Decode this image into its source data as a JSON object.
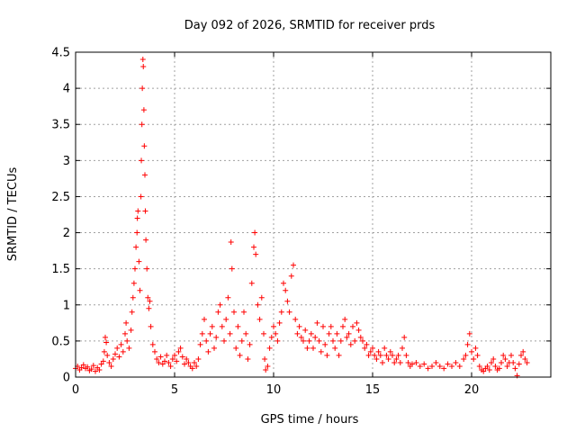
{
  "chart_data": {
    "type": "scatter",
    "title": "Day 092 of 2026, SRMTID for receiver prds",
    "xlabel": "GPS time / hours",
    "ylabel": "SRMTID / TECUs",
    "xlim": [
      0,
      24
    ],
    "ylim": [
      0,
      4.5
    ],
    "xticks": [
      "0",
      "5",
      "10",
      "15",
      "20"
    ],
    "yticks": [
      "0",
      "0.5",
      "1",
      "1.5",
      "2",
      "2.5",
      "3",
      "3.5",
      "4",
      "4.5"
    ],
    "grid": true,
    "marker": "plus",
    "series": [
      {
        "name": "SRMTID",
        "color": "#ff0000",
        "points": [
          [
            0.0,
            0.12
          ],
          [
            0.1,
            0.15
          ],
          [
            0.2,
            0.1
          ],
          [
            0.3,
            0.13
          ],
          [
            0.4,
            0.17
          ],
          [
            0.5,
            0.12
          ],
          [
            0.6,
            0.14
          ],
          [
            0.7,
            0.09
          ],
          [
            0.8,
            0.11
          ],
          [
            0.9,
            0.16
          ],
          [
            1.0,
            0.08
          ],
          [
            1.1,
            0.13
          ],
          [
            1.2,
            0.1
          ],
          [
            1.3,
            0.18
          ],
          [
            1.4,
            0.22
          ],
          [
            1.45,
            0.35
          ],
          [
            1.5,
            0.55
          ],
          [
            1.55,
            0.48
          ],
          [
            1.6,
            0.3
          ],
          [
            1.7,
            0.2
          ],
          [
            1.8,
            0.15
          ],
          [
            1.9,
            0.25
          ],
          [
            2.0,
            0.32
          ],
          [
            2.1,
            0.4
          ],
          [
            2.2,
            0.28
          ],
          [
            2.3,
            0.45
          ],
          [
            2.4,
            0.35
          ],
          [
            2.5,
            0.6
          ],
          [
            2.55,
            0.75
          ],
          [
            2.6,
            0.5
          ],
          [
            2.7,
            0.4
          ],
          [
            2.8,
            0.65
          ],
          [
            2.85,
            0.9
          ],
          [
            2.9,
            1.1
          ],
          [
            2.95,
            1.3
          ],
          [
            3.0,
            1.5
          ],
          [
            3.05,
            1.8
          ],
          [
            3.1,
            2.0
          ],
          [
            3.12,
            2.2
          ],
          [
            3.15,
            2.3
          ],
          [
            3.2,
            1.6
          ],
          [
            3.25,
            1.2
          ],
          [
            3.3,
            2.5
          ],
          [
            3.32,
            3.0
          ],
          [
            3.35,
            3.5
          ],
          [
            3.37,
            4.0
          ],
          [
            3.4,
            4.4
          ],
          [
            3.42,
            4.3
          ],
          [
            3.45,
            3.7
          ],
          [
            3.47,
            3.2
          ],
          [
            3.5,
            2.8
          ],
          [
            3.52,
            2.3
          ],
          [
            3.55,
            1.9
          ],
          [
            3.6,
            1.5
          ],
          [
            3.65,
            1.1
          ],
          [
            3.7,
            0.95
          ],
          [
            3.75,
            1.05
          ],
          [
            3.8,
            0.7
          ],
          [
            3.9,
            0.45
          ],
          [
            4.0,
            0.35
          ],
          [
            4.1,
            0.25
          ],
          [
            4.2,
            0.2
          ],
          [
            4.3,
            0.28
          ],
          [
            4.4,
            0.18
          ],
          [
            4.5,
            0.22
          ],
          [
            4.6,
            0.3
          ],
          [
            4.7,
            0.2
          ],
          [
            4.8,
            0.15
          ],
          [
            4.9,
            0.25
          ],
          [
            5.0,
            0.3
          ],
          [
            5.1,
            0.22
          ],
          [
            5.2,
            0.35
          ],
          [
            5.3,
            0.4
          ],
          [
            5.4,
            0.28
          ],
          [
            5.5,
            0.18
          ],
          [
            5.6,
            0.25
          ],
          [
            5.7,
            0.2
          ],
          [
            5.8,
            0.15
          ],
          [
            5.9,
            0.12
          ],
          [
            6.0,
            0.2
          ],
          [
            6.1,
            0.15
          ],
          [
            6.2,
            0.25
          ],
          [
            6.3,
            0.45
          ],
          [
            6.4,
            0.6
          ],
          [
            6.5,
            0.8
          ],
          [
            6.6,
            0.5
          ],
          [
            6.7,
            0.35
          ],
          [
            6.8,
            0.6
          ],
          [
            6.9,
            0.7
          ],
          [
            7.0,
            0.4
          ],
          [
            7.1,
            0.55
          ],
          [
            7.2,
            0.9
          ],
          [
            7.3,
            1.0
          ],
          [
            7.4,
            0.7
          ],
          [
            7.5,
            0.5
          ],
          [
            7.6,
            0.8
          ],
          [
            7.7,
            1.1
          ],
          [
            7.8,
            0.6
          ],
          [
            7.85,
            1.87
          ],
          [
            7.9,
            1.5
          ],
          [
            8.0,
            0.9
          ],
          [
            8.1,
            0.4
          ],
          [
            8.2,
            0.7
          ],
          [
            8.3,
            0.3
          ],
          [
            8.4,
            0.5
          ],
          [
            8.5,
            0.9
          ],
          [
            8.6,
            0.6
          ],
          [
            8.7,
            0.25
          ],
          [
            8.8,
            0.45
          ],
          [
            8.9,
            1.3
          ],
          [
            9.0,
            1.8
          ],
          [
            9.05,
            2.0
          ],
          [
            9.1,
            1.7
          ],
          [
            9.2,
            1.0
          ],
          [
            9.3,
            0.8
          ],
          [
            9.4,
            1.1
          ],
          [
            9.5,
            0.6
          ],
          [
            9.55,
            0.25
          ],
          [
            9.6,
            0.1
          ],
          [
            9.7,
            0.15
          ],
          [
            9.8,
            0.4
          ],
          [
            9.9,
            0.55
          ],
          [
            10.0,
            0.7
          ],
          [
            10.1,
            0.6
          ],
          [
            10.2,
            0.5
          ],
          [
            10.3,
            0.75
          ],
          [
            10.4,
            0.9
          ],
          [
            10.5,
            1.3
          ],
          [
            10.6,
            1.2
          ],
          [
            10.7,
            1.05
          ],
          [
            10.8,
            0.9
          ],
          [
            10.9,
            1.4
          ],
          [
            11.0,
            1.55
          ],
          [
            11.1,
            0.8
          ],
          [
            11.2,
            0.6
          ],
          [
            11.3,
            0.7
          ],
          [
            11.4,
            0.55
          ],
          [
            11.5,
            0.5
          ],
          [
            11.6,
            0.65
          ],
          [
            11.7,
            0.4
          ],
          [
            11.8,
            0.5
          ],
          [
            11.9,
            0.6
          ],
          [
            12.0,
            0.4
          ],
          [
            12.1,
            0.55
          ],
          [
            12.2,
            0.75
          ],
          [
            12.3,
            0.5
          ],
          [
            12.4,
            0.35
          ],
          [
            12.5,
            0.7
          ],
          [
            12.6,
            0.45
          ],
          [
            12.7,
            0.3
          ],
          [
            12.8,
            0.6
          ],
          [
            12.9,
            0.7
          ],
          [
            13.0,
            0.5
          ],
          [
            13.1,
            0.4
          ],
          [
            13.2,
            0.6
          ],
          [
            13.3,
            0.3
          ],
          [
            13.4,
            0.5
          ],
          [
            13.5,
            0.7
          ],
          [
            13.6,
            0.8
          ],
          [
            13.7,
            0.55
          ],
          [
            13.8,
            0.6
          ],
          [
            13.9,
            0.45
          ],
          [
            14.0,
            0.7
          ],
          [
            14.1,
            0.5
          ],
          [
            14.2,
            0.75
          ],
          [
            14.3,
            0.65
          ],
          [
            14.4,
            0.55
          ],
          [
            14.5,
            0.5
          ],
          [
            14.6,
            0.4
          ],
          [
            14.7,
            0.45
          ],
          [
            14.8,
            0.3
          ],
          [
            14.9,
            0.35
          ],
          [
            15.0,
            0.4
          ],
          [
            15.1,
            0.3
          ],
          [
            15.2,
            0.25
          ],
          [
            15.3,
            0.35
          ],
          [
            15.4,
            0.3
          ],
          [
            15.5,
            0.2
          ],
          [
            15.6,
            0.4
          ],
          [
            15.7,
            0.3
          ],
          [
            15.8,
            0.25
          ],
          [
            15.9,
            0.35
          ],
          [
            16.0,
            0.3
          ],
          [
            16.1,
            0.2
          ],
          [
            16.2,
            0.25
          ],
          [
            16.3,
            0.3
          ],
          [
            16.4,
            0.2
          ],
          [
            16.5,
            0.4
          ],
          [
            16.6,
            0.55
          ],
          [
            16.7,
            0.3
          ],
          [
            16.8,
            0.2
          ],
          [
            16.9,
            0.15
          ],
          [
            17.0,
            0.18
          ],
          [
            17.2,
            0.2
          ],
          [
            17.4,
            0.15
          ],
          [
            17.6,
            0.18
          ],
          [
            17.8,
            0.12
          ],
          [
            18.0,
            0.15
          ],
          [
            18.2,
            0.2
          ],
          [
            18.4,
            0.15
          ],
          [
            18.6,
            0.12
          ],
          [
            18.8,
            0.18
          ],
          [
            19.0,
            0.15
          ],
          [
            19.2,
            0.2
          ],
          [
            19.4,
            0.15
          ],
          [
            19.6,
            0.25
          ],
          [
            19.7,
            0.3
          ],
          [
            19.8,
            0.45
          ],
          [
            19.9,
            0.6
          ],
          [
            20.0,
            0.35
          ],
          [
            20.1,
            0.25
          ],
          [
            20.2,
            0.4
          ],
          [
            20.3,
            0.3
          ],
          [
            20.4,
            0.15
          ],
          [
            20.5,
            0.1
          ],
          [
            20.6,
            0.08
          ],
          [
            20.7,
            0.12
          ],
          [
            20.8,
            0.15
          ],
          [
            20.9,
            0.1
          ],
          [
            21.0,
            0.2
          ],
          [
            21.1,
            0.25
          ],
          [
            21.2,
            0.15
          ],
          [
            21.3,
            0.1
          ],
          [
            21.4,
            0.12
          ],
          [
            21.5,
            0.2
          ],
          [
            21.6,
            0.3
          ],
          [
            21.7,
            0.25
          ],
          [
            21.8,
            0.15
          ],
          [
            21.9,
            0.2
          ],
          [
            22.0,
            0.3
          ],
          [
            22.1,
            0.2
          ],
          [
            22.2,
            0.12
          ],
          [
            22.3,
            0.02
          ],
          [
            22.4,
            0.18
          ],
          [
            22.5,
            0.3
          ],
          [
            22.6,
            0.35
          ],
          [
            22.7,
            0.25
          ],
          [
            22.8,
            0.2
          ]
        ]
      }
    ]
  }
}
